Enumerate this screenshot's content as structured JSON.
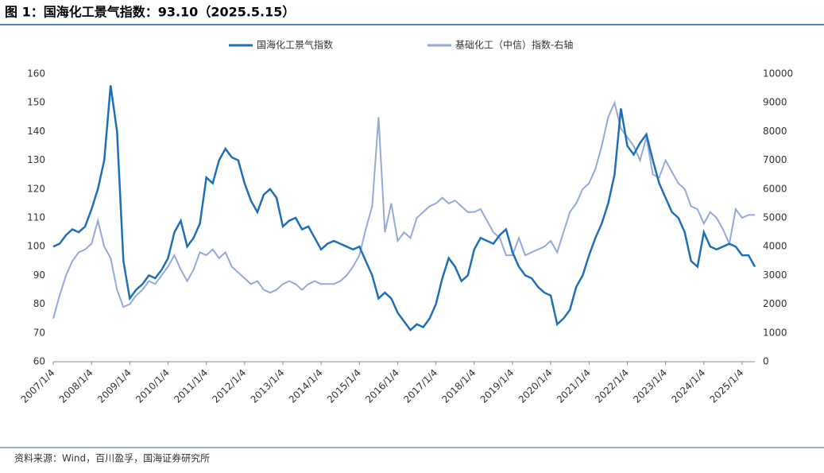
{
  "chart_data": {
    "type": "line",
    "title": "图 1：国海化工景气指数：93.10（2025.5.15）",
    "source": "资料来源：Wind，百川盈孚，国海证券研究所",
    "categories": [
      "2007/1/4",
      null,
      null,
      null,
      null,
      null,
      "2008/1/4",
      null,
      null,
      null,
      null,
      null,
      "2009/1/4",
      null,
      null,
      null,
      null,
      null,
      "2010/1/4",
      null,
      null,
      null,
      null,
      null,
      "2011/1/4",
      null,
      null,
      null,
      null,
      null,
      "2012/1/4",
      null,
      null,
      null,
      null,
      null,
      "2013/1/4",
      null,
      null,
      null,
      null,
      null,
      "2014/1/4",
      null,
      null,
      null,
      null,
      null,
      "2015/1/4",
      null,
      null,
      null,
      null,
      null,
      "2016/1/4",
      null,
      null,
      null,
      null,
      null,
      "2017/1/4",
      null,
      null,
      null,
      null,
      null,
      "2018/1/4",
      null,
      null,
      null,
      null,
      null,
      "2019/1/4",
      null,
      null,
      null,
      null,
      null,
      "2020/1/4",
      null,
      null,
      null,
      null,
      null,
      "2021/1/4",
      null,
      null,
      null,
      null,
      null,
      "2022/1/4",
      null,
      null,
      null,
      null,
      null,
      "2023/1/4",
      null,
      null,
      null,
      null,
      null,
      "2024/1/4",
      null,
      null,
      null,
      null,
      null,
      "2025/1/4",
      null,
      null
    ],
    "series": [
      {
        "name": "国海化工景气指数",
        "color": "#1f6fb8",
        "axis": "y",
        "values": [
          100,
          101,
          104,
          106,
          105,
          107,
          113,
          120,
          130,
          156,
          140,
          95,
          82,
          85,
          87,
          90,
          89,
          92,
          96,
          105,
          109,
          100,
          103,
          108,
          124,
          122,
          130,
          134,
          131,
          130,
          122,
          116,
          112,
          118,
          120,
          117,
          107,
          109,
          110,
          106,
          107,
          103,
          99,
          101,
          102,
          101,
          100,
          99,
          100,
          95,
          90,
          82,
          84,
          82,
          77,
          74,
          71,
          73,
          72,
          75,
          80,
          89,
          96,
          93,
          88,
          90,
          99,
          103,
          102,
          101,
          104,
          106,
          98,
          93,
          90,
          89,
          86,
          84,
          83,
          73,
          75,
          78,
          86,
          90,
          97,
          103,
          108,
          115,
          125,
          148,
          135,
          132,
          136,
          139,
          130,
          122,
          117,
          112,
          110,
          105,
          95,
          93,
          105,
          100,
          99,
          100,
          101,
          100,
          97,
          97,
          93
        ]
      },
      {
        "name": "基础化工（中信）指数-右轴",
        "color": "#93aadc",
        "axis": "y2",
        "values": [
          1500,
          2300,
          3000,
          3500,
          3800,
          3900,
          4100,
          4900,
          4000,
          3600,
          2500,
          1900,
          2000,
          2300,
          2500,
          2800,
          2700,
          3000,
          3300,
          3700,
          3200,
          2800,
          3200,
          3800,
          3700,
          3900,
          3600,
          3800,
          3300,
          3100,
          2900,
          2700,
          2800,
          2500,
          2400,
          2500,
          2700,
          2800,
          2700,
          2500,
          2700,
          2800,
          2700,
          2700,
          2700,
          2800,
          3000,
          3300,
          3700,
          4600,
          5400,
          8500,
          4500,
          5500,
          4200,
          4500,
          4300,
          5000,
          5200,
          5400,
          5500,
          5700,
          5500,
          5600,
          5400,
          5200,
          5200,
          5300,
          4900,
          4500,
          4300,
          3700,
          3700,
          4300,
          3700,
          3800,
          3900,
          4000,
          4200,
          3800,
          4500,
          5200,
          5500,
          6000,
          6200,
          6700,
          7500,
          8500,
          9000,
          8100,
          7800,
          7500,
          7000,
          7800,
          6500,
          6400,
          7000,
          6600,
          6200,
          6000,
          5400,
          5300,
          4800,
          5200,
          5000,
          4600,
          4100,
          5300,
          5000,
          5100,
          5100
        ]
      }
    ],
    "ylim": [
      60,
      160
    ],
    "yticks": [
      60,
      70,
      80,
      90,
      100,
      110,
      120,
      130,
      140,
      150,
      160
    ],
    "y2lim": [
      0,
      10000
    ],
    "y2ticks": [
      0,
      1000,
      2000,
      3000,
      4000,
      5000,
      6000,
      7000,
      8000,
      9000,
      10000
    ]
  }
}
